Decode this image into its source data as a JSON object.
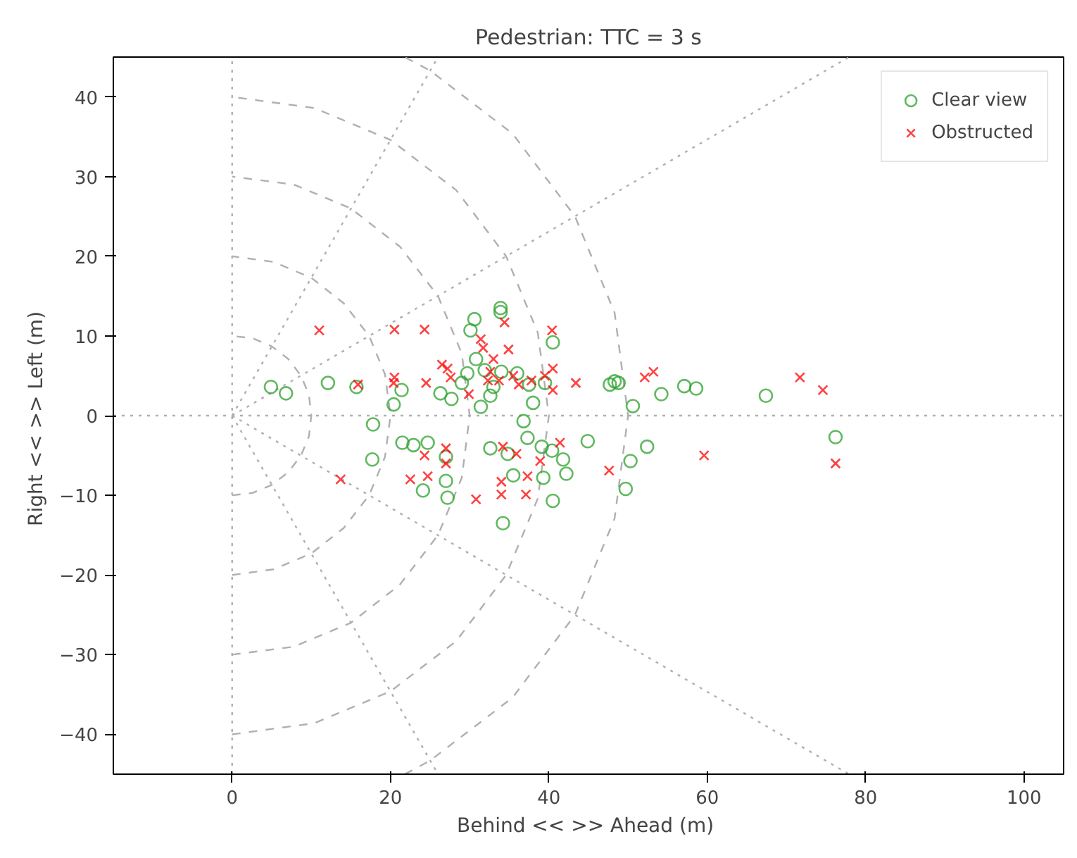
{
  "chart_data": {
    "type": "scatter",
    "title": "Pedestrian: TTC = 3 s",
    "xlabel": "Behind <<  >> Ahead (m)",
    "ylabel": "Right <<  >> Left (m)",
    "xlim": [
      -15,
      105
    ],
    "ylim": [
      -45,
      45
    ],
    "xticks": [
      0,
      20,
      40,
      60,
      80,
      100
    ],
    "yticks": [
      -40,
      -30,
      -20,
      -10,
      0,
      10,
      20,
      30,
      40
    ],
    "legend": "top right",
    "series": [
      {
        "type": "line",
        "color": "#b0b0b0",
        "line_style": "dotted",
        "x": [
          0,
          0
        ],
        "values": [
          -45,
          45
        ]
      },
      {
        "type": "line",
        "color": "#b0b0b0",
        "line_style": "dotted",
        "x": [
          -15,
          105
        ],
        "values": [
          0,
          0
        ]
      },
      {
        "type": "line",
        "color": "#b0b0b0",
        "line_style": "dashed",
        "x": [
          0,
          2.6,
          5,
          7.1,
          8.7,
          9.7,
          10,
          9.7,
          8.7,
          7.1,
          5,
          2.6,
          0
        ],
        "values": [
          -10,
          -9.7,
          -8.7,
          -7.1,
          -5,
          -2.6,
          0,
          2.6,
          5,
          7.1,
          8.7,
          9.7,
          10
        ]
      },
      {
        "type": "line",
        "color": "#b0b0b0",
        "line_style": "dashed",
        "x": [
          0,
          5.2,
          10,
          14.1,
          17.3,
          19.3,
          20,
          19.3,
          17.3,
          14.1,
          10,
          5.2,
          0
        ],
        "values": [
          -20,
          -19.3,
          -17.3,
          -14.1,
          -10,
          -5.2,
          0,
          5.2,
          10,
          14.1,
          17.3,
          19.3,
          20
        ]
      },
      {
        "type": "line",
        "color": "#b0b0b0",
        "line_style": "dashed",
        "x": [
          0,
          7.8,
          15,
          21.2,
          26,
          29,
          30,
          29,
          26,
          21.2,
          15,
          7.8,
          0
        ],
        "values": [
          -30,
          -29,
          -26,
          -21.2,
          -15,
          -7.8,
          0,
          7.8,
          15,
          21.2,
          26,
          29,
          30
        ]
      },
      {
        "type": "line",
        "color": "#b0b0b0",
        "line_style": "dashed",
        "x": [
          0,
          10.4,
          20,
          28.3,
          34.6,
          38.6,
          40,
          38.6,
          34.6,
          28.3,
          20,
          10.4,
          0
        ],
        "values": [
          -40,
          -38.6,
          -34.6,
          -28.3,
          -20,
          -10.4,
          0,
          10.4,
          20,
          28.3,
          34.6,
          38.6,
          40
        ]
      },
      {
        "type": "line",
        "color": "#b0b0b0",
        "line_style": "dashed",
        "x": [
          21.8,
          25,
          35.4,
          43.3,
          48.3,
          50,
          48.3,
          43.3,
          35.4,
          25,
          21.8
        ],
        "values": [
          -45,
          -43.3,
          -35.4,
          -25,
          -12.9,
          0,
          12.9,
          25,
          35.4,
          43.3,
          45
        ]
      },
      {
        "type": "line",
        "color": "#b0b0b0",
        "line_style": "dotted",
        "x": [
          0,
          26
        ],
        "values": [
          0,
          45
        ]
      },
      {
        "type": "line",
        "color": "#b0b0b0",
        "line_style": "dotted",
        "x": [
          0,
          77.9
        ],
        "values": [
          0,
          45
        ]
      },
      {
        "type": "line",
        "color": "#b0b0b0",
        "line_style": "dotted",
        "x": [
          0,
          26
        ],
        "values": [
          0,
          -45
        ]
      },
      {
        "type": "line",
        "color": "#b0b0b0",
        "line_style": "dotted",
        "x": [
          0,
          77.9
        ],
        "values": [
          0,
          -45
        ]
      },
      {
        "name": "Clear view",
        "color": "#2ca02c",
        "marker": "circle",
        "x": [
          4.9,
          6.8,
          12.1,
          15.7,
          17.8,
          17.7,
          20.4,
          21.5,
          21.4,
          22.9,
          24.1,
          24.7,
          26.3,
          27,
          27.2,
          27,
          27.7,
          29,
          29.7,
          30.1,
          30.6,
          30.8,
          31.4,
          31.9,
          32.6,
          32.6,
          33.9,
          33.9,
          33,
          34,
          34.2,
          34.8,
          35.5,
          36,
          36.8,
          37.3,
          37.5,
          38,
          39.1,
          39.3,
          39.5,
          40.5,
          40.5,
          40.4,
          41.8,
          42.2,
          44.9,
          47.7,
          48.3,
          48.8,
          50.3,
          49.7,
          50.6,
          52.4,
          54.2,
          57.1,
          58.6,
          67.4,
          76.2
        ],
        "values": [
          3.6,
          2.8,
          4.1,
          3.6,
          -1.1,
          -5.5,
          1.4,
          -3.4,
          3.2,
          -3.7,
          -9.4,
          -3.4,
          2.8,
          -8.2,
          -10.3,
          -5.2,
          2.1,
          4.1,
          5.3,
          10.7,
          12.1,
          7.1,
          1.1,
          5.7,
          -4.1,
          2.5,
          13.5,
          13,
          3.6,
          5.5,
          -13.5,
          -4.8,
          -7.5,
          5.3,
          -0.7,
          -2.8,
          3.9,
          1.6,
          -3.9,
          -7.8,
          4.1,
          9.2,
          -10.7,
          -4.4,
          -5.5,
          -7.3,
          -3.2,
          3.9,
          4.3,
          4.1,
          -5.7,
          -9.2,
          1.2,
          -3.9,
          2.7,
          3.7,
          3.4,
          2.5,
          -2.7
        ]
      },
      {
        "name": "Obstructed",
        "color": "#ff0000",
        "marker": "cross",
        "x": [
          11,
          13.7,
          15.9,
          20.5,
          20.4,
          20.5,
          24.3,
          24.5,
          22.5,
          24.7,
          24.3,
          26.5,
          27.2,
          27,
          27,
          27.6,
          29.9,
          30.8,
          31.4,
          31.7,
          32.3,
          32.6,
          33,
          33.7,
          34,
          34,
          34.2,
          34.4,
          34.9,
          35.5,
          35.9,
          36.2,
          37.3,
          37.1,
          37.8,
          38.9,
          39.5,
          40.4,
          40.5,
          40.5,
          41.4,
          43.4,
          47.6,
          52.1,
          53.2,
          59.6,
          71.7,
          74.6,
          76.2
        ],
        "values": [
          10.7,
          -8,
          3.9,
          10.8,
          4.1,
          4.8,
          10.8,
          4.1,
          -8,
          -7.6,
          -5,
          6.4,
          5.9,
          -4.1,
          -6,
          4.8,
          2.7,
          -10.5,
          9.6,
          8.5,
          4.4,
          5.5,
          7.1,
          4.4,
          -9.9,
          -8.3,
          -3.9,
          11.7,
          8.3,
          5,
          -4.8,
          3.9,
          -7.6,
          -9.9,
          4.4,
          -5.7,
          5,
          10.7,
          5.9,
          3.2,
          -3.4,
          4.1,
          -6.9,
          4.8,
          5.5,
          -5,
          4.8,
          3.2,
          -6
        ]
      }
    ]
  }
}
